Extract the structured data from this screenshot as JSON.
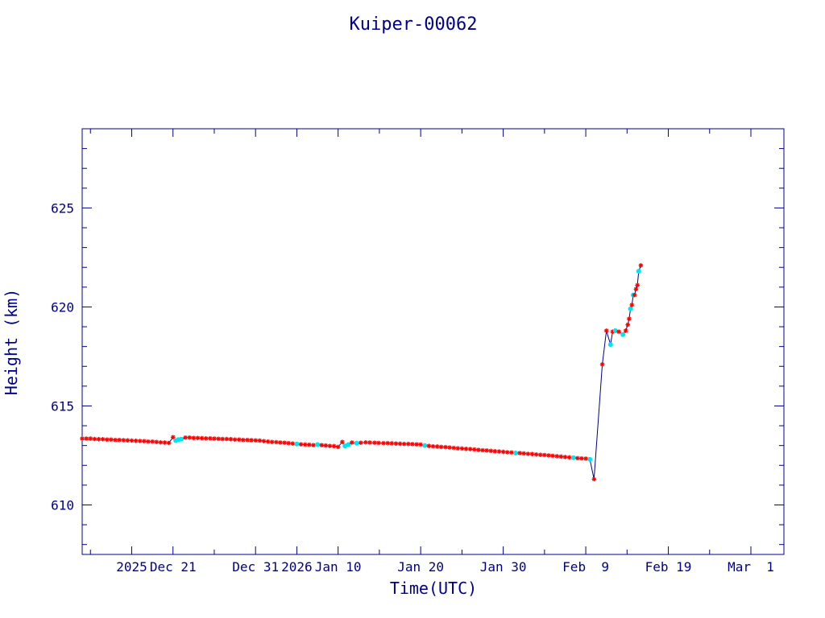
{
  "chart_data": {
    "type": "line",
    "title": "Kuiper-00062",
    "xlabel": "Time(UTC)",
    "ylabel": "Height (km)",
    "xlim": [
      "2025-12-10T00:00",
      "2026-03-05T00:00"
    ],
    "ylim": [
      607.5,
      629
    ],
    "grid": false,
    "x_ticks": [
      {
        "date": "2025-12-11",
        "label": ""
      },
      {
        "date": "2025-12-16",
        "label": "2025"
      },
      {
        "date": "2025-12-21",
        "label": "Dec 21"
      },
      {
        "date": "2025-12-26",
        "label": ""
      },
      {
        "date": "2025-12-31",
        "label": "Dec 31"
      },
      {
        "date": "2026-01-05",
        "label": "2026"
      },
      {
        "date": "2026-01-10",
        "label": "Jan 10"
      },
      {
        "date": "2026-01-15",
        "label": ""
      },
      {
        "date": "2026-01-20",
        "label": "Jan 20"
      },
      {
        "date": "2026-01-25",
        "label": ""
      },
      {
        "date": "2026-01-30",
        "label": "Jan 30"
      },
      {
        "date": "2026-02-04",
        "label": ""
      },
      {
        "date": "2026-02-09",
        "label": "Feb  9"
      },
      {
        "date": "2026-02-14",
        "label": ""
      },
      {
        "date": "2026-02-19",
        "label": "Feb 19"
      },
      {
        "date": "2026-02-24",
        "label": ""
      },
      {
        "date": "2026-03-01",
        "label": "Mar  1"
      }
    ],
    "y_ticks": [
      {
        "value": 610,
        "label": "610"
      },
      {
        "value": 615,
        "label": "615"
      },
      {
        "value": 620,
        "label": "620"
      },
      {
        "value": 625,
        "label": "625"
      }
    ],
    "y_minor_step": 1,
    "colors": {
      "axis": "#00008b",
      "line": "#00008b",
      "marker_primary": "#ff0000",
      "marker_secondary": "#00e5ee"
    },
    "series": [
      {
        "points": [
          {
            "x": "2025-12-10T00:00",
            "y": 613.35,
            "m": "r"
          },
          {
            "x": "2025-12-10T12:00",
            "y": 613.35,
            "m": "r"
          },
          {
            "x": "2025-12-11T00:00",
            "y": 613.35,
            "m": "r"
          },
          {
            "x": "2025-12-11T12:00",
            "y": 613.33,
            "m": "r"
          },
          {
            "x": "2025-12-12T00:00",
            "y": 613.32,
            "m": "r"
          },
          {
            "x": "2025-12-12T12:00",
            "y": 613.32,
            "m": "r"
          },
          {
            "x": "2025-12-13T00:00",
            "y": 613.3,
            "m": "r"
          },
          {
            "x": "2025-12-13T12:00",
            "y": 613.3,
            "m": "r"
          },
          {
            "x": "2025-12-14T00:00",
            "y": 613.28,
            "m": "r"
          },
          {
            "x": "2025-12-14T12:00",
            "y": 613.28,
            "m": "r"
          },
          {
            "x": "2025-12-15T00:00",
            "y": 613.27,
            "m": "r"
          },
          {
            "x": "2025-12-15T12:00",
            "y": 613.26,
            "m": "r"
          },
          {
            "x": "2025-12-16T00:00",
            "y": 613.25,
            "m": "r"
          },
          {
            "x": "2025-12-16T12:00",
            "y": 613.24,
            "m": "r"
          },
          {
            "x": "2025-12-17T00:00",
            "y": 613.23,
            "m": "r"
          },
          {
            "x": "2025-12-17T12:00",
            "y": 613.22,
            "m": "r"
          },
          {
            "x": "2025-12-18T00:00",
            "y": 613.2,
            "m": "r"
          },
          {
            "x": "2025-12-18T12:00",
            "y": 613.2,
            "m": "r"
          },
          {
            "x": "2025-12-19T00:00",
            "y": 613.18,
            "m": "r"
          },
          {
            "x": "2025-12-19T12:00",
            "y": 613.16,
            "m": "r"
          },
          {
            "x": "2025-12-20T00:00",
            "y": 613.15,
            "m": "r"
          },
          {
            "x": "2025-12-20T12:00",
            "y": 613.13,
            "m": "r"
          },
          {
            "x": "2025-12-21T00:00",
            "y": 613.42,
            "m": "r"
          },
          {
            "x": "2025-12-21T08:00",
            "y": 613.25,
            "m": "c"
          },
          {
            "x": "2025-12-21T16:00",
            "y": 613.3,
            "m": "c"
          },
          {
            "x": "2025-12-22T00:00",
            "y": 613.32,
            "m": "c"
          },
          {
            "x": "2025-12-22T12:00",
            "y": 613.4,
            "m": "r"
          },
          {
            "x": "2025-12-23T00:00",
            "y": 613.4,
            "m": "r"
          },
          {
            "x": "2025-12-23T12:00",
            "y": 613.38,
            "m": "r"
          },
          {
            "x": "2025-12-24T00:00",
            "y": 613.38,
            "m": "r"
          },
          {
            "x": "2025-12-24T12:00",
            "y": 613.37,
            "m": "r"
          },
          {
            "x": "2025-12-25T00:00",
            "y": 613.36,
            "m": "r"
          },
          {
            "x": "2025-12-25T12:00",
            "y": 613.36,
            "m": "r"
          },
          {
            "x": "2025-12-26T00:00",
            "y": 613.35,
            "m": "r"
          },
          {
            "x": "2025-12-26T12:00",
            "y": 613.34,
            "m": "r"
          },
          {
            "x": "2025-12-27T00:00",
            "y": 613.33,
            "m": "r"
          },
          {
            "x": "2025-12-27T12:00",
            "y": 613.33,
            "m": "r"
          },
          {
            "x": "2025-12-28T00:00",
            "y": 613.32,
            "m": "r"
          },
          {
            "x": "2025-12-28T12:00",
            "y": 613.3,
            "m": "r"
          },
          {
            "x": "2025-12-29T00:00",
            "y": 613.3,
            "m": "r"
          },
          {
            "x": "2025-12-29T12:00",
            "y": 613.28,
            "m": "r"
          },
          {
            "x": "2025-12-30T00:00",
            "y": 613.28,
            "m": "r"
          },
          {
            "x": "2025-12-30T12:00",
            "y": 613.27,
            "m": "r"
          },
          {
            "x": "2025-12-31T00:00",
            "y": 613.26,
            "m": "r"
          },
          {
            "x": "2025-12-31T12:00",
            "y": 613.25,
            "m": "r"
          },
          {
            "x": "2026-01-01T00:00",
            "y": 613.22,
            "m": "r"
          },
          {
            "x": "2026-01-01T12:00",
            "y": 613.2,
            "m": "r"
          },
          {
            "x": "2026-01-02T00:00",
            "y": 613.18,
            "m": "r"
          },
          {
            "x": "2026-01-02T12:00",
            "y": 613.17,
            "m": "r"
          },
          {
            "x": "2026-01-03T00:00",
            "y": 613.15,
            "m": "r"
          },
          {
            "x": "2026-01-03T12:00",
            "y": 613.14,
            "m": "r"
          },
          {
            "x": "2026-01-04T00:00",
            "y": 613.12,
            "m": "r"
          },
          {
            "x": "2026-01-04T12:00",
            "y": 613.1,
            "m": "r"
          },
          {
            "x": "2026-01-05T00:00",
            "y": 613.08,
            "m": "c"
          },
          {
            "x": "2026-01-05T12:00",
            "y": 613.06,
            "m": "r"
          },
          {
            "x": "2026-01-06T00:00",
            "y": 613.05,
            "m": "r"
          },
          {
            "x": "2026-01-06T12:00",
            "y": 613.04,
            "m": "r"
          },
          {
            "x": "2026-01-07T00:00",
            "y": 613.02,
            "m": "r"
          },
          {
            "x": "2026-01-07T12:00",
            "y": 613.05,
            "m": "c"
          },
          {
            "x": "2026-01-08T00:00",
            "y": 613.02,
            "m": "r"
          },
          {
            "x": "2026-01-08T12:00",
            "y": 613.0,
            "m": "r"
          },
          {
            "x": "2026-01-09T00:00",
            "y": 612.98,
            "m": "r"
          },
          {
            "x": "2026-01-09T12:00",
            "y": 612.97,
            "m": "r"
          },
          {
            "x": "2026-01-10T00:00",
            "y": 612.93,
            "m": "r"
          },
          {
            "x": "2026-01-10T12:00",
            "y": 613.18,
            "m": "r"
          },
          {
            "x": "2026-01-10T20:00",
            "y": 612.98,
            "m": "c"
          },
          {
            "x": "2026-01-11T06:00",
            "y": 613.05,
            "m": "c"
          },
          {
            "x": "2026-01-11T16:00",
            "y": 613.15,
            "m": "r"
          },
          {
            "x": "2026-01-12T06:00",
            "y": 613.12,
            "m": "c"
          },
          {
            "x": "2026-01-12T18:00",
            "y": 613.14,
            "m": "r"
          },
          {
            "x": "2026-01-13T08:00",
            "y": 613.16,
            "m": "r"
          },
          {
            "x": "2026-01-13T20:00",
            "y": 613.15,
            "m": "r"
          },
          {
            "x": "2026-01-14T10:00",
            "y": 613.14,
            "m": "r"
          },
          {
            "x": "2026-01-14T22:00",
            "y": 613.13,
            "m": "r"
          },
          {
            "x": "2026-01-15T12:00",
            "y": 613.12,
            "m": "r"
          },
          {
            "x": "2026-01-16T00:00",
            "y": 613.12,
            "m": "r"
          },
          {
            "x": "2026-01-16T12:00",
            "y": 613.11,
            "m": "r"
          },
          {
            "x": "2026-01-17T00:00",
            "y": 613.1,
            "m": "r"
          },
          {
            "x": "2026-01-17T12:00",
            "y": 613.09,
            "m": "r"
          },
          {
            "x": "2026-01-18T00:00",
            "y": 613.08,
            "m": "r"
          },
          {
            "x": "2026-01-18T12:00",
            "y": 613.08,
            "m": "r"
          },
          {
            "x": "2026-01-19T00:00",
            "y": 613.07,
            "m": "r"
          },
          {
            "x": "2026-01-19T12:00",
            "y": 613.06,
            "m": "r"
          },
          {
            "x": "2026-01-20T00:00",
            "y": 613.05,
            "m": "r"
          },
          {
            "x": "2026-01-20T12:00",
            "y": 613.0,
            "m": "c"
          },
          {
            "x": "2026-01-21T00:00",
            "y": 612.98,
            "m": "r"
          },
          {
            "x": "2026-01-21T12:00",
            "y": 612.96,
            "m": "r"
          },
          {
            "x": "2026-01-22T00:00",
            "y": 612.95,
            "m": "r"
          },
          {
            "x": "2026-01-22T12:00",
            "y": 612.93,
            "m": "r"
          },
          {
            "x": "2026-01-23T00:00",
            "y": 612.92,
            "m": "r"
          },
          {
            "x": "2026-01-23T12:00",
            "y": 612.9,
            "m": "r"
          },
          {
            "x": "2026-01-24T00:00",
            "y": 612.88,
            "m": "r"
          },
          {
            "x": "2026-01-24T12:00",
            "y": 612.86,
            "m": "r"
          },
          {
            "x": "2026-01-25T00:00",
            "y": 612.85,
            "m": "r"
          },
          {
            "x": "2026-01-25T12:00",
            "y": 612.83,
            "m": "r"
          },
          {
            "x": "2026-01-26T00:00",
            "y": 612.82,
            "m": "r"
          },
          {
            "x": "2026-01-26T12:00",
            "y": 612.8,
            "m": "r"
          },
          {
            "x": "2026-01-27T00:00",
            "y": 612.78,
            "m": "r"
          },
          {
            "x": "2026-01-27T12:00",
            "y": 612.76,
            "m": "r"
          },
          {
            "x": "2026-01-28T00:00",
            "y": 612.75,
            "m": "r"
          },
          {
            "x": "2026-01-28T12:00",
            "y": 612.73,
            "m": "r"
          },
          {
            "x": "2026-01-29T00:00",
            "y": 612.71,
            "m": "r"
          },
          {
            "x": "2026-01-29T12:00",
            "y": 612.7,
            "m": "r"
          },
          {
            "x": "2026-01-30T00:00",
            "y": 612.68,
            "m": "r"
          },
          {
            "x": "2026-01-30T12:00",
            "y": 612.66,
            "m": "r"
          },
          {
            "x": "2026-01-31T00:00",
            "y": 612.65,
            "m": "r"
          },
          {
            "x": "2026-01-31T12:00",
            "y": 612.62,
            "m": "c"
          },
          {
            "x": "2026-02-01T00:00",
            "y": 612.62,
            "m": "r"
          },
          {
            "x": "2026-02-01T12:00",
            "y": 612.6,
            "m": "r"
          },
          {
            "x": "2026-02-02T00:00",
            "y": 612.58,
            "m": "r"
          },
          {
            "x": "2026-02-02T12:00",
            "y": 612.57,
            "m": "r"
          },
          {
            "x": "2026-02-03T00:00",
            "y": 612.55,
            "m": "r"
          },
          {
            "x": "2026-02-03T12:00",
            "y": 612.53,
            "m": "r"
          },
          {
            "x": "2026-02-04T00:00",
            "y": 612.52,
            "m": "r"
          },
          {
            "x": "2026-02-04T12:00",
            "y": 612.5,
            "m": "r"
          },
          {
            "x": "2026-02-05T00:00",
            "y": 612.48,
            "m": "r"
          },
          {
            "x": "2026-02-05T12:00",
            "y": 612.46,
            "m": "r"
          },
          {
            "x": "2026-02-06T00:00",
            "y": 612.44,
            "m": "r"
          },
          {
            "x": "2026-02-06T12:00",
            "y": 612.42,
            "m": "r"
          },
          {
            "x": "2026-02-07T00:00",
            "y": 612.4,
            "m": "r"
          },
          {
            "x": "2026-02-07T12:00",
            "y": 612.38,
            "m": "c"
          },
          {
            "x": "2026-02-08T00:00",
            "y": 612.36,
            "m": "r"
          },
          {
            "x": "2026-02-08T12:00",
            "y": 612.35,
            "m": "r"
          },
          {
            "x": "2026-02-09T00:00",
            "y": 612.34,
            "m": "r"
          },
          {
            "x": "2026-02-09T12:00",
            "y": 612.3,
            "m": "c"
          },
          {
            "x": "2026-02-10T00:00",
            "y": 611.3,
            "m": "r"
          },
          {
            "x": "2026-02-11T00:00",
            "y": 617.1,
            "m": "r"
          },
          {
            "x": "2026-02-11T12:00",
            "y": 618.8,
            "m": "r"
          },
          {
            "x": "2026-02-12T00:00",
            "y": 618.1,
            "m": "c"
          },
          {
            "x": "2026-02-12T06:00",
            "y": 618.75,
            "m": "r"
          },
          {
            "x": "2026-02-12T14:00",
            "y": 618.8,
            "m": "c"
          },
          {
            "x": "2026-02-13T00:00",
            "y": 618.75,
            "m": "r"
          },
          {
            "x": "2026-02-13T12:00",
            "y": 618.6,
            "m": "c"
          },
          {
            "x": "2026-02-13T20:00",
            "y": 618.8,
            "m": "r"
          },
          {
            "x": "2026-02-14T02:00",
            "y": 619.1,
            "m": "r"
          },
          {
            "x": "2026-02-14T06:00",
            "y": 619.4,
            "m": "r"
          },
          {
            "x": "2026-02-14T10:00",
            "y": 619.9,
            "m": "c"
          },
          {
            "x": "2026-02-14T14:00",
            "y": 620.1,
            "m": "r"
          },
          {
            "x": "2026-02-14T18:00",
            "y": 620.6,
            "m": "c"
          },
          {
            "x": "2026-02-14T22:00",
            "y": 620.6,
            "m": "r"
          },
          {
            "x": "2026-02-15T02:00",
            "y": 620.9,
            "m": "r"
          },
          {
            "x": "2026-02-15T06:00",
            "y": 621.1,
            "m": "r"
          },
          {
            "x": "2026-02-15T10:00",
            "y": 621.8,
            "m": "c"
          },
          {
            "x": "2026-02-15T16:00",
            "y": 622.1,
            "m": "r"
          }
        ]
      }
    ]
  }
}
